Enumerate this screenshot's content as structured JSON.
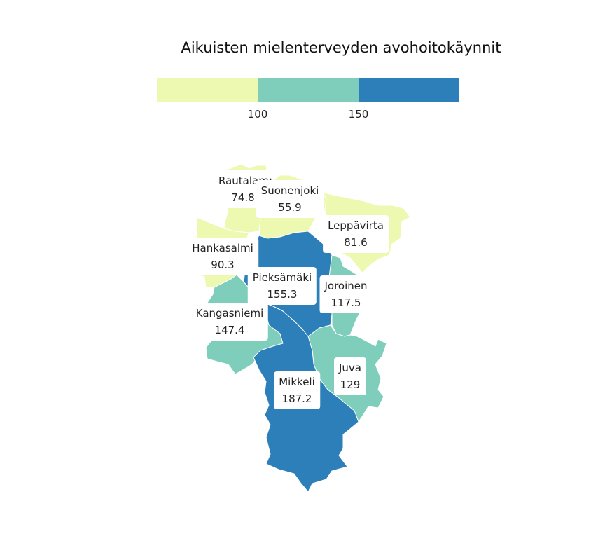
{
  "title": "Aikuisten mielenterveyden avohoitokäynnit",
  "legend": {
    "colors": [
      "#edf8b1",
      "#7fcdbb",
      "#2c7fb8"
    ],
    "breaks": [
      "100",
      "150"
    ]
  },
  "regions": [
    {
      "name": "Rautalampi",
      "value": "74.8",
      "color": "#edf8b1"
    },
    {
      "name": "Suonenjoki",
      "value": "55.9",
      "color": "#edf8b1"
    },
    {
      "name": "Leppävirta",
      "value": "81.6",
      "color": "#edf8b1"
    },
    {
      "name": "Hankasalmi",
      "value": "90.3",
      "color": "#edf8b1"
    },
    {
      "name": "Pieksämäki",
      "value": "155.3",
      "color": "#2c7fb8"
    },
    {
      "name": "Joroinen",
      "value": "117.5",
      "color": "#7fcdbb"
    },
    {
      "name": "Kangasniemi",
      "value": "147.4",
      "color": "#7fcdbb"
    },
    {
      "name": "Juva",
      "value": "129",
      "color": "#7fcdbb"
    },
    {
      "name": "Mikkeli",
      "value": "187.2",
      "color": "#2c7fb8"
    }
  ]
}
